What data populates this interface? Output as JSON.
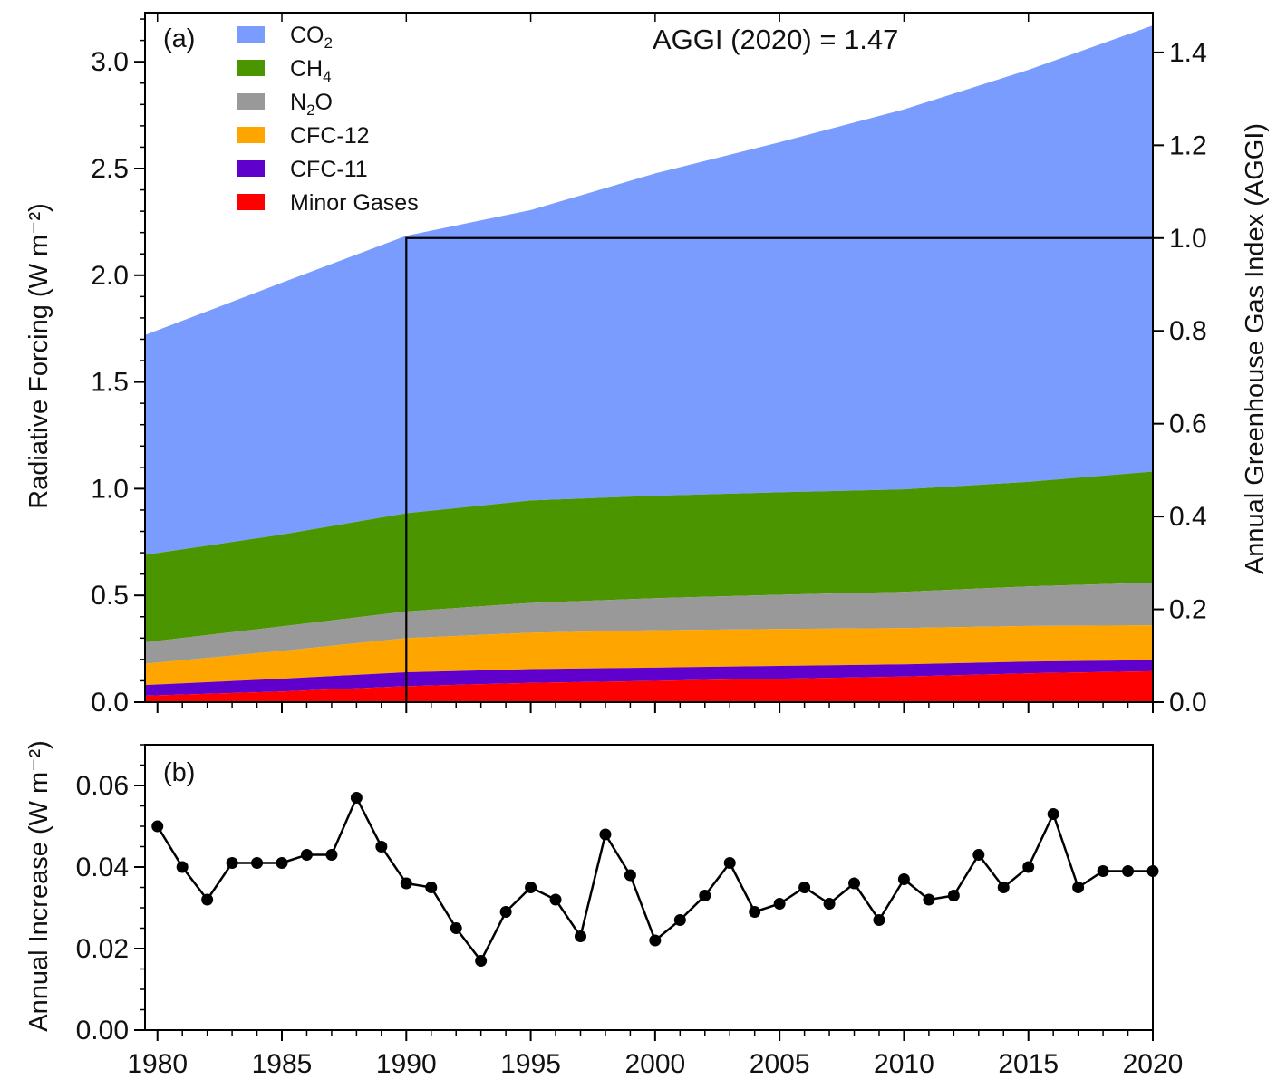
{
  "chart_data": [
    {
      "type": "area",
      "panel_label": "(a)",
      "annotation": "AGGI (2020) = 1.47",
      "ylabel": "Radiative Forcing (W m⁻²)",
      "ylabel_right": "Annual Greenhouse Gas Index (AGGI)",
      "xlim": [
        1979.5,
        2020
      ],
      "ylim": [
        0,
        3.23
      ],
      "yticks": [
        0.0,
        0.5,
        1.0,
        1.5,
        2.0,
        2.5,
        3.0
      ],
      "ytick_labels": [
        "0.0",
        "0.5",
        "1.0",
        "1.5",
        "2.0",
        "2.5",
        "3.0"
      ],
      "right_ylim": [
        0,
        1.4857
      ],
      "right_yticks": [
        0.0,
        0.2,
        0.4,
        0.6,
        0.8,
        1.0,
        1.2,
        1.4
      ],
      "right_ytick_labels": [
        "0.0",
        "0.2",
        "0.4",
        "0.6",
        "0.8",
        "1.0",
        "1.2",
        "1.4"
      ],
      "stacked": true,
      "legend_position": "top-left",
      "reference_box": {
        "x_start": 1990,
        "aggi_level": 1.0
      },
      "x": [
        1979.5,
        1985,
        1990,
        1995,
        2000,
        2005,
        2010,
        2015,
        2020
      ],
      "series": [
        {
          "name": "Minor Gases",
          "legend_label": "Minor Gases",
          "color": "#ff0000",
          "values": [
            0.03,
            0.05,
            0.075,
            0.09,
            0.1,
            0.11,
            0.12,
            0.135,
            0.145
          ]
        },
        {
          "name": "CFC-11",
          "legend_label": "CFC-11",
          "color": "#6000cc",
          "values": [
            0.05,
            0.06,
            0.065,
            0.065,
            0.062,
            0.06,
            0.057,
            0.055,
            0.052
          ]
        },
        {
          "name": "CFC-12",
          "legend_label": "CFC-12",
          "color": "#ffa500",
          "values": [
            0.1,
            0.13,
            0.16,
            0.17,
            0.175,
            0.173,
            0.17,
            0.167,
            0.163
          ]
        },
        {
          "name": "N2O",
          "legend_label": "N",
          "legend_sub": "2",
          "legend_suffix": "O",
          "color": "#999999",
          "values": [
            0.1,
            0.115,
            0.125,
            0.14,
            0.15,
            0.16,
            0.17,
            0.185,
            0.2
          ]
        },
        {
          "name": "CH4",
          "legend_label": "CH",
          "legend_sub": "4",
          "legend_suffix": "",
          "color": "#4a9500",
          "values": [
            0.41,
            0.43,
            0.46,
            0.48,
            0.48,
            0.48,
            0.48,
            0.49,
            0.52
          ]
        },
        {
          "name": "CO2",
          "legend_label": "CO",
          "legend_sub": "2",
          "legend_suffix": "",
          "color": "#7b9cff",
          "values": [
            1.03,
            1.18,
            1.3,
            1.36,
            1.51,
            1.64,
            1.78,
            1.93,
            2.09
          ]
        }
      ]
    },
    {
      "type": "line",
      "panel_label": "(b)",
      "ylabel": "Annual Increase (W m⁻²)",
      "xlim": [
        1979.5,
        2020
      ],
      "ylim": [
        0,
        0.07
      ],
      "yticks": [
        0.0,
        0.02,
        0.04,
        0.06
      ],
      "ytick_labels": [
        "0.00",
        "0.02",
        "0.04",
        "0.06"
      ],
      "xticks": [
        1980,
        1985,
        1990,
        1995,
        2000,
        2005,
        2010,
        2015,
        2020
      ],
      "xtick_labels": [
        "1980",
        "1985",
        "1990",
        "1995",
        "2000",
        "2005",
        "2010",
        "2015",
        "2020"
      ],
      "line_color": "#000000",
      "x": [
        1980,
        1981,
        1982,
        1983,
        1984,
        1985,
        1986,
        1987,
        1988,
        1989,
        1990,
        1991,
        1992,
        1993,
        1994,
        1995,
        1996,
        1997,
        1998,
        1999,
        2000,
        2001,
        2002,
        2003,
        2004,
        2005,
        2006,
        2007,
        2008,
        2009,
        2010,
        2011,
        2012,
        2013,
        2014,
        2015,
        2016,
        2017,
        2018,
        2019,
        2020
      ],
      "y": [
        0.05,
        0.04,
        0.032,
        0.041,
        0.041,
        0.041,
        0.043,
        0.043,
        0.057,
        0.045,
        0.036,
        0.035,
        0.025,
        0.017,
        0.029,
        0.035,
        0.032,
        0.023,
        0.048,
        0.038,
        0.022,
        0.027,
        0.033,
        0.041,
        0.029,
        0.031,
        0.035,
        0.031,
        0.036,
        0.027,
        0.037,
        0.032,
        0.033,
        0.043,
        0.035,
        0.04,
        0.053,
        0.035,
        0.039,
        0.039,
        0.039
      ]
    }
  ]
}
